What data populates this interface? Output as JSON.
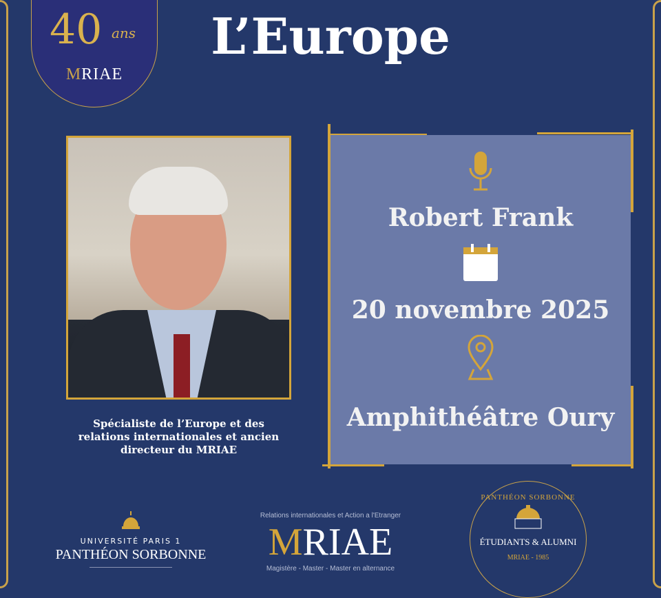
{
  "logo_40": {
    "number": "40",
    "suffix": "ans",
    "brand_first": "M",
    "brand_rest": "RIAE"
  },
  "title": "L’Europe",
  "speaker": {
    "name": "Robert Frank",
    "caption": "Spécialiste de l’Europe et des relations internationales et ancien directeur du MRIAE"
  },
  "event": {
    "date": "20 novembre 2025",
    "location": "Amphithéâtre Oury",
    "icons": [
      "microphone-icon",
      "calendar-icon",
      "map-pin-icon"
    ]
  },
  "footer": {
    "pantheon": {
      "line1": "UNIVERSITÉ PARIS 1",
      "line2": "PANTHÉON SORBONNE"
    },
    "mriae": {
      "top": "Relations internationales et Action a l'Etranger",
      "brand_first": "M",
      "brand_rest": "RIAE",
      "bottom": "Magistère - Master - Master en alternance"
    },
    "alumni": {
      "top": "PANTHÉON SORBONNE",
      "middle": "ÉTUDIANTS & ALUMNI",
      "bottom": "MRIAE - 1985"
    }
  },
  "colors": {
    "background": "#24386a",
    "gold": "#d4a53a",
    "box": "#6b7aa8"
  }
}
